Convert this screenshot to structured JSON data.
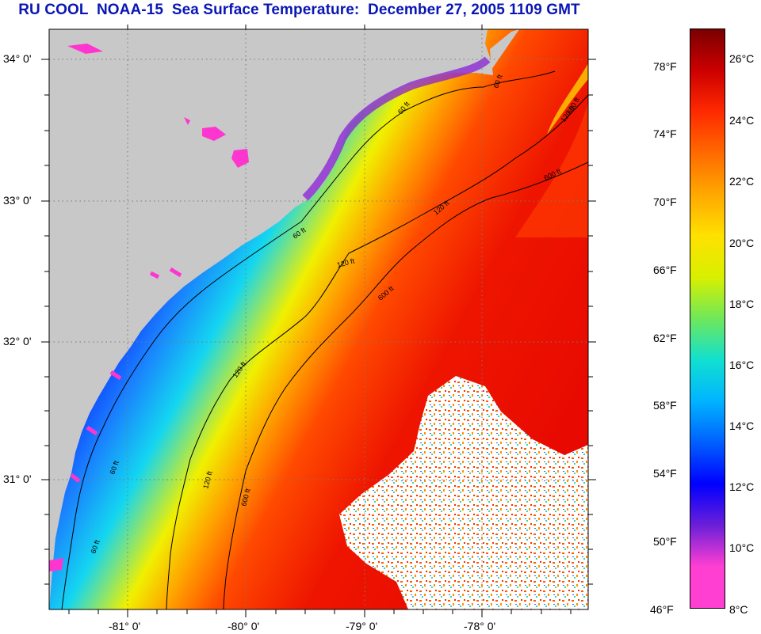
{
  "title": "RU COOL  NOAA-15  Sea Surface Temperature:  December 27, 2005 1109 GMT",
  "map": {
    "lat_ticks": [
      "34° 0'",
      "33° 0'",
      "32° 0'",
      "31° 0'"
    ],
    "lon_ticks": [
      "-81° 0'",
      "-80° 0'",
      "-79° 0'",
      "-78° 0'"
    ],
    "contours": [
      {
        "depth": 60,
        "labels": [
          "60 ft",
          "60 ft",
          "60 ft",
          "60 ft",
          "60 ft"
        ]
      },
      {
        "depth": 120,
        "labels": [
          "120 ft",
          "120 ft",
          "120 ft",
          "120 ft",
          "120 ft"
        ]
      },
      {
        "depth": 600,
        "labels": [
          "600 ft",
          "600 ft",
          "600 ft",
          "600 ft"
        ]
      }
    ],
    "colors": {
      "land": "#c8c8c8",
      "grid": "#7a7a7a",
      "contour": "#000000",
      "cloud": "#ffffff"
    }
  },
  "colorbar": {
    "fahrenheit": [
      "78°F",
      "74°F",
      "70°F",
      "66°F",
      "62°F",
      "58°F",
      "54°F",
      "50°F",
      "46°F"
    ],
    "celsius": [
      "26°C",
      "24°C",
      "22°C",
      "20°C",
      "18°C",
      "16°C",
      "14°C",
      "12°C",
      "10°C",
      "8°C"
    ],
    "gradient_top_to_bottom": [
      "#7a0000",
      "#cc0000",
      "#ff2a00",
      "#ff6a00",
      "#ffa800",
      "#ffe100",
      "#d8f000",
      "#6fe85a",
      "#11e0d0",
      "#00b4ff",
      "#0060ff",
      "#0000ff",
      "#6a1fd8",
      "#ff3fd2",
      "#ff3fd2"
    ]
  }
}
